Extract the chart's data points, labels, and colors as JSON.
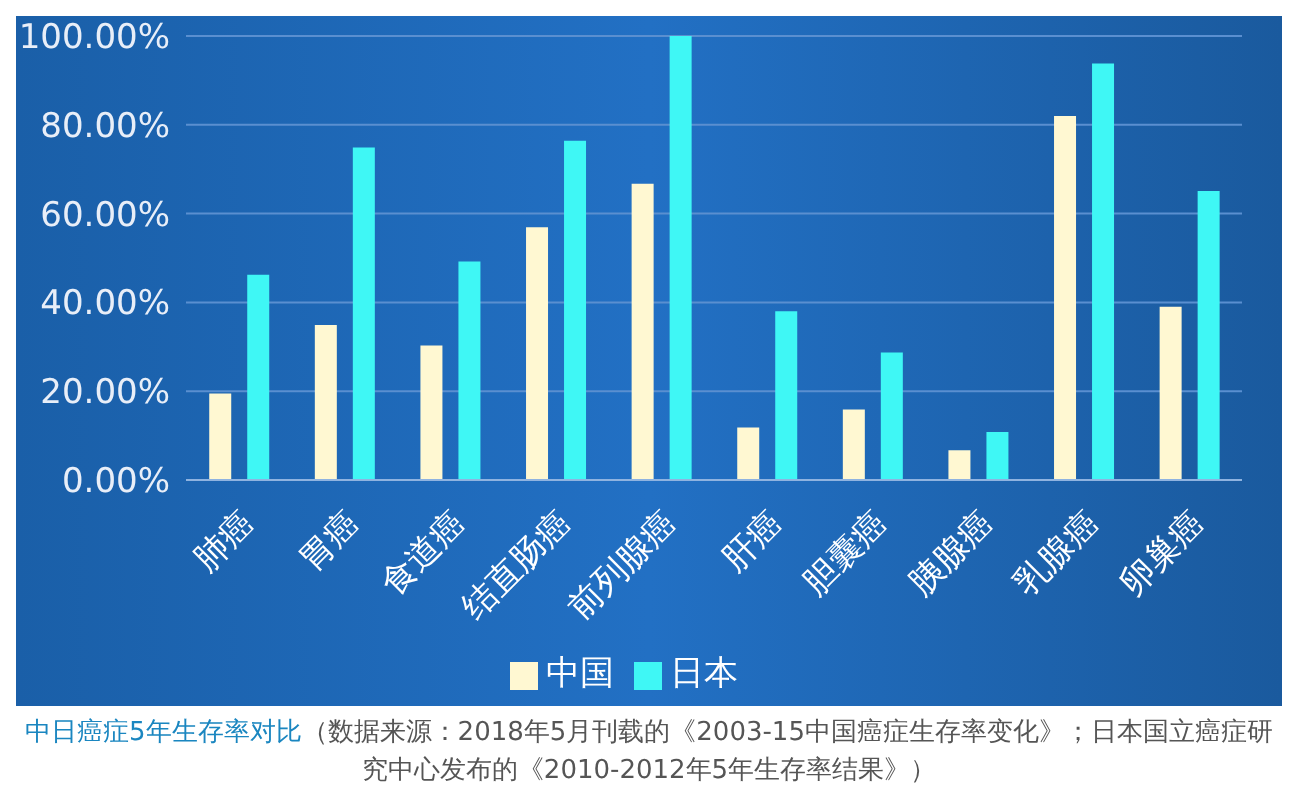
{
  "chart_data": {
    "type": "bar",
    "title": "中日癌症5年生存率对比",
    "annotations": [
      "（数据来源：2018年5月刊载的《2003-15中国癌症生存率变化》；日本国立癌症研究中心发布的《2010-2012年5年生存率结果》）"
    ],
    "categories": [
      "肺癌",
      "胃癌",
      "食道癌",
      "结直肠癌",
      "前列腺癌",
      "肝癌",
      "胆囊癌",
      "胰腺癌",
      "乳腺癌",
      "卵巢癌"
    ],
    "series": [
      {
        "name": "中国",
        "color": "#fff8d2",
        "values": [
          19.5,
          34.9,
          30.3,
          56.9,
          66.7,
          11.8,
          15.9,
          6.7,
          82.0,
          39.0
        ]
      },
      {
        "name": "日本",
        "color": "#3ff7f5",
        "values": [
          46.2,
          74.9,
          49.2,
          76.4,
          100,
          38.0,
          28.7,
          10.8,
          93.8,
          65.1
        ]
      }
    ],
    "ylim": [
      0,
      100
    ],
    "yticks": [
      {
        "value": 0,
        "label": "0.00%"
      },
      {
        "value": 20,
        "label": "20.00%"
      },
      {
        "value": 40,
        "label": "40.00%"
      },
      {
        "value": 60,
        "label": "60.00%"
      },
      {
        "value": 80,
        "label": "80.00%"
      },
      {
        "value": 100,
        "label": "100.00%"
      }
    ],
    "grid": "y",
    "legend": "bottom"
  }
}
